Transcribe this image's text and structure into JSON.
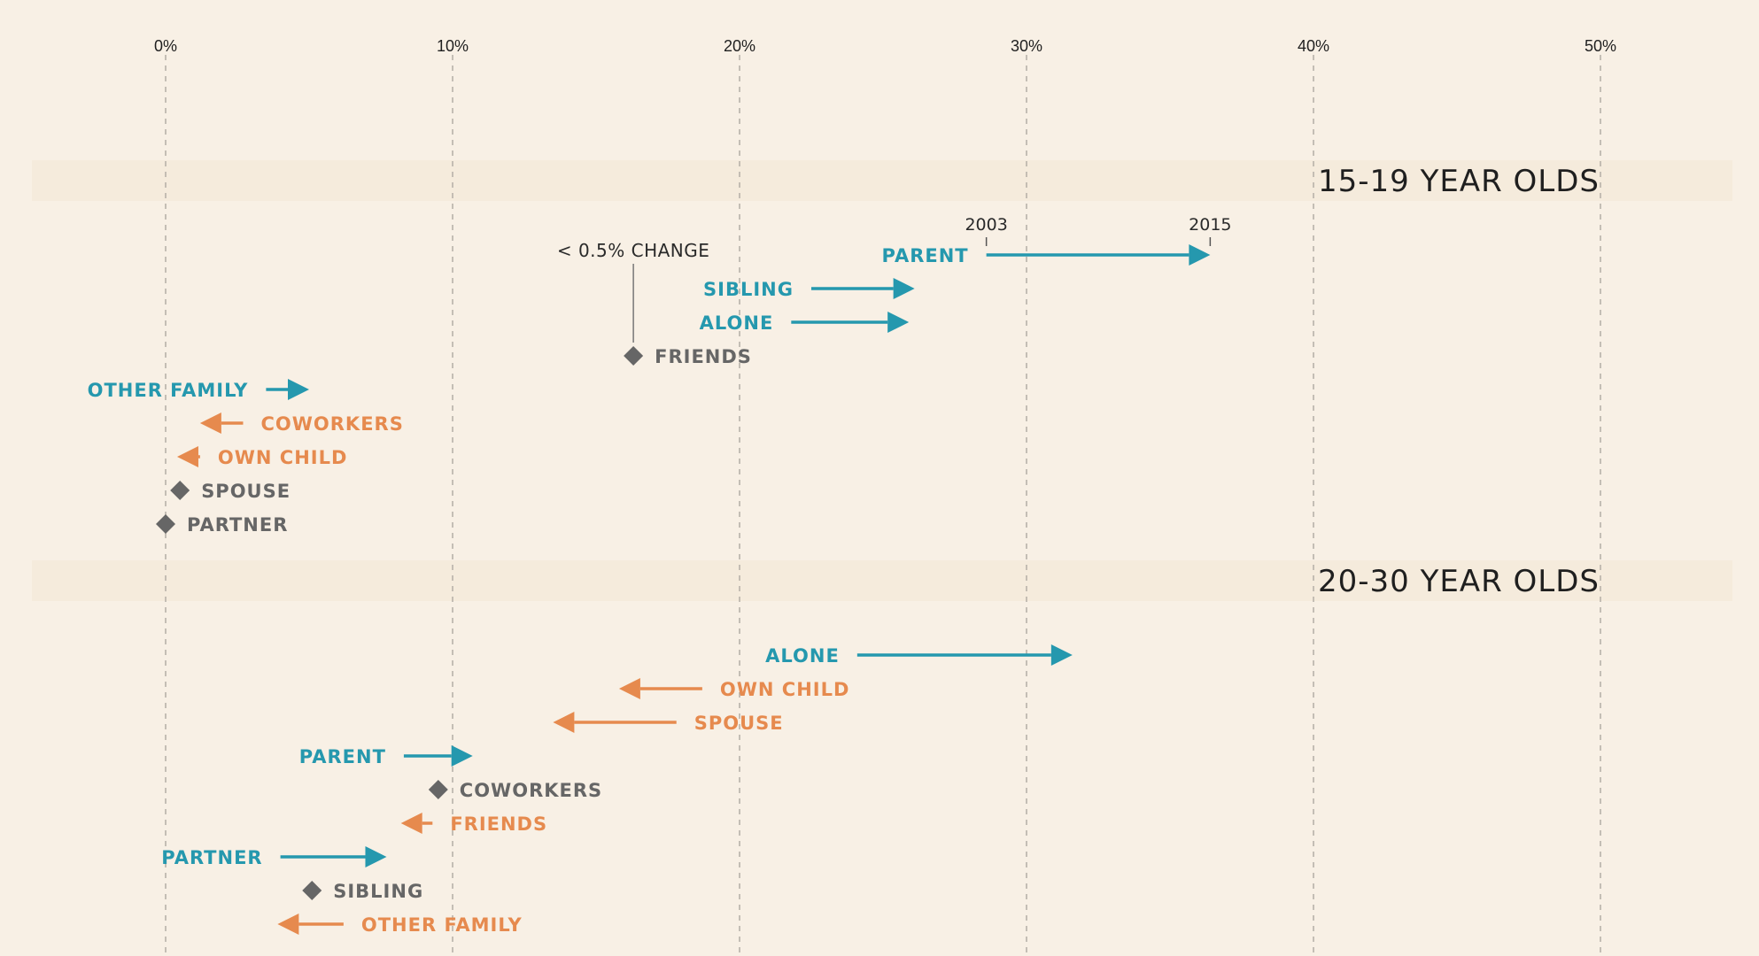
{
  "colors": {
    "background": "#f8f0e5",
    "band": "#f5ebdc",
    "increase": "#2598ae",
    "decrease": "#e68a4e",
    "no_change": "#666666",
    "gridline": "#b3aea5"
  },
  "chart_data": {
    "type": "arrow-dot-plot",
    "x_unit": "%",
    "xlim": [
      0,
      50
    ],
    "x_ticks": [
      {
        "value": 0,
        "label": "0%"
      },
      {
        "value": 10,
        "label": "10%"
      },
      {
        "value": 20,
        "label": "20%"
      },
      {
        "value": 30,
        "label": "30%"
      },
      {
        "value": 40,
        "label": "40%"
      },
      {
        "value": 50,
        "label": "50%"
      }
    ],
    "grid": "vertical dashed",
    "legend": {
      "start_year": "2003",
      "end_year": "2015",
      "no_change_label": "< 0.5% CHANGE"
    },
    "groups": [
      {
        "title": "15-19 YEAR OLDS",
        "rows": [
          {
            "label": "PARENT",
            "start": 28.6,
            "end": 36.4,
            "direction": "increase"
          },
          {
            "label": "SIBLING",
            "start": 22.5,
            "end": 26.1,
            "direction": "increase"
          },
          {
            "label": "ALONE",
            "start": 21.8,
            "end": 25.9,
            "direction": "increase"
          },
          {
            "label": "FRIENDS",
            "start": 16.3,
            "end": 16.3,
            "direction": "no change"
          },
          {
            "label": "OTHER FAMILY",
            "start": 3.5,
            "end": 5.0,
            "direction": "increase"
          },
          {
            "label": "COWORKERS",
            "start": 2.7,
            "end": 1.2,
            "direction": "decrease"
          },
          {
            "label": "OWN CHILD",
            "start": 1.2,
            "end": 0.4,
            "direction": "decrease"
          },
          {
            "label": "SPOUSE",
            "start": 0.5,
            "end": 0.5,
            "direction": "no change"
          },
          {
            "label": "PARTNER",
            "start": 0.0,
            "end": 0.0,
            "direction": "no change"
          }
        ]
      },
      {
        "title": "20-30 YEAR OLDS",
        "rows": [
          {
            "label": "ALONE",
            "start": 24.1,
            "end": 31.6,
            "direction": "increase"
          },
          {
            "label": "OWN CHILD",
            "start": 18.7,
            "end": 15.8,
            "direction": "decrease"
          },
          {
            "label": "SPOUSE",
            "start": 17.8,
            "end": 13.5,
            "direction": "decrease"
          },
          {
            "label": "PARENT",
            "start": 8.3,
            "end": 10.7,
            "direction": "increase"
          },
          {
            "label": "COWORKERS",
            "start": 9.5,
            "end": 9.5,
            "direction": "no change"
          },
          {
            "label": "FRIENDS",
            "start": 9.3,
            "end": 8.2,
            "direction": "decrease"
          },
          {
            "label": "PARTNER",
            "start": 4.0,
            "end": 7.7,
            "direction": "increase"
          },
          {
            "label": "SIBLING",
            "start": 5.1,
            "end": 5.1,
            "direction": "no change"
          },
          {
            "label": "OTHER FAMILY",
            "start": 6.2,
            "end": 3.9,
            "direction": "decrease"
          }
        ]
      }
    ]
  }
}
